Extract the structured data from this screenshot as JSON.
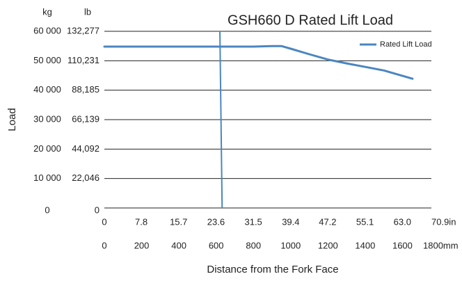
{
  "chart_data": {
    "type": "line",
    "title": "GSH660 D Rated Lift Load",
    "ylabel": "Load",
    "xlabel": "Distance from the Fork Face",
    "y_unit": "kg",
    "y2_unit": "lb",
    "x": [
      0,
      200,
      400,
      600,
      800,
      900,
      950,
      1000,
      1100,
      1200,
      1300,
      1400,
      1500,
      1654
    ],
    "series": [
      {
        "name": "Rated Lift Load",
        "color": "#4a86c0",
        "values": [
          54800,
          54800,
          54800,
          54800,
          54800,
          55000,
          55000,
          54100,
          52200,
          50400,
          49100,
          47900,
          46700,
          43900
        ]
      }
    ],
    "marker_line": {
      "x": [
        620,
        632
      ],
      "y": [
        60000,
        0
      ],
      "color": "#4a86c0"
    },
    "xlim": [
      0,
      1800
    ],
    "xticks": [
      0,
      200,
      400,
      600,
      800,
      1000,
      1200,
      1400,
      1600,
      {
        "value": 1800,
        "label": "1800mm"
      }
    ],
    "x2lim": [
      0,
      70.9
    ],
    "x2ticks": [
      0,
      7.8,
      15.7,
      23.6,
      31.5,
      39.4,
      47.2,
      55.1,
      {
        "value": 63.0,
        "label": "63.0"
      },
      {
        "value": 70.9,
        "label": "70.9in"
      }
    ],
    "ylim": [
      0,
      60000
    ],
    "yticks": [
      0,
      {
        "value": 10000,
        "label": "10 000"
      },
      {
        "value": 20000,
        "label": "20 000"
      },
      {
        "value": 30000,
        "label": "30 000"
      },
      {
        "value": 40000,
        "label": "40 000"
      },
      {
        "value": 50000,
        "label": "50 000"
      },
      {
        "value": 60000,
        "label": "60 000"
      }
    ],
    "y2lim": [
      0,
      132277
    ],
    "y2ticks": [
      0,
      {
        "value": 22046,
        "label": "22,046"
      },
      {
        "value": 44092,
        "label": "44,092"
      },
      {
        "value": 66139,
        "label": "66,139"
      },
      {
        "value": 88185,
        "label": "88,185"
      },
      {
        "value": 110231,
        "label": "110,231"
      },
      {
        "value": 132277,
        "label": "132,277"
      }
    ],
    "grid": true,
    "legend": "upper right"
  }
}
